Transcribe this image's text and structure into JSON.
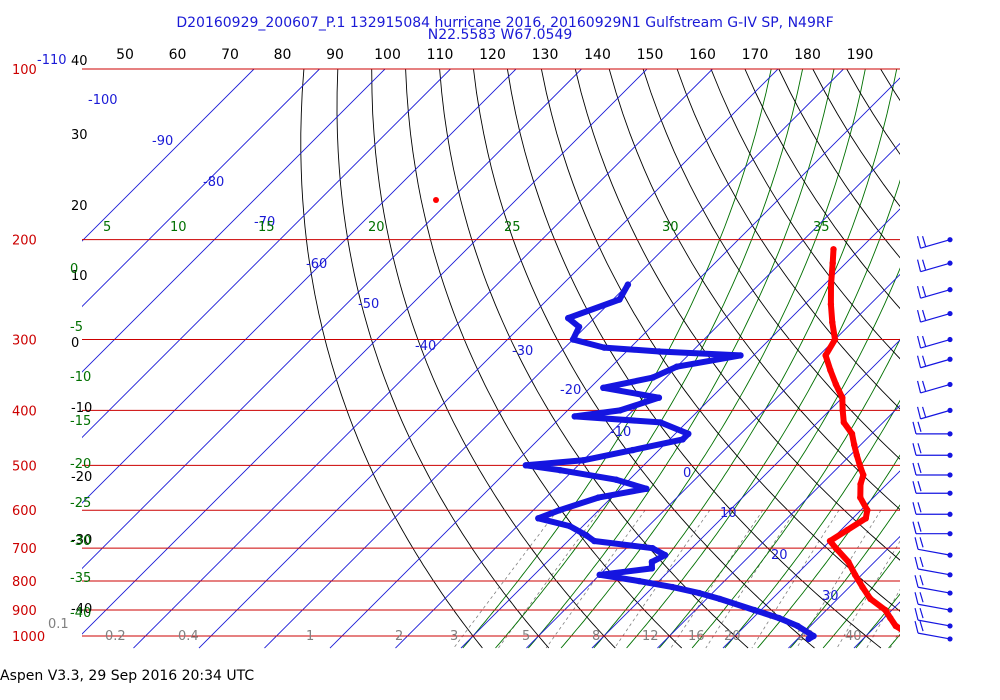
{
  "title": {
    "line1": "D20160929_200607_P.1 132915084 hurricane 2016, 20160929N1 Gulfstream G-IV SP, N49RF",
    "line2": "N22.5583 W67.0549"
  },
  "footer": "Aspen V3.3, 29 Sep 2016  20:34 UTC",
  "colors": {
    "isobar": "#cc0000",
    "isotherm": "#1a1ad6",
    "dry_adiabat": "#000000",
    "moist_adiabat": "#007000",
    "mixing_ratio": "#808080",
    "temperature": "#ff0000",
    "dewpoint": "#1515e0",
    "wind_barb": "#1515e0"
  },
  "chart_data": {
    "type": "skew-t",
    "pressure_axis": {
      "unit": "hPa",
      "scale": "log",
      "range": [
        1000,
        100
      ],
      "ticks": [
        "100",
        "200",
        "300",
        "400",
        "500",
        "600",
        "700",
        "800",
        "900",
        "1000"
      ]
    },
    "pressure_axis_alt_labels": [
      "-110"
    ],
    "top_axis_ticks": [
      "50",
      "60",
      "70",
      "80",
      "90",
      "100",
      "110",
      "120",
      "130",
      "140",
      "150",
      "160",
      "170",
      "180",
      "190"
    ],
    "left_height_ticks": [
      "40",
      "30",
      "20",
      "10",
      "0",
      "-10",
      "-20",
      "-30",
      "-40"
    ],
    "isotherm_labels": [
      "-100",
      "-90",
      "-80",
      "-70",
      "-60",
      "-50",
      "-40",
      "-30",
      "-20",
      "-10",
      "0",
      "10",
      "20",
      "30"
    ],
    "moist_adiabat_labels": [
      "5",
      "10",
      "15",
      "20",
      "25",
      "30",
      "35"
    ],
    "moist_left_labels": [
      "0",
      "-5",
      "-10",
      "-15",
      "-20",
      "-25",
      "-30",
      "-35",
      "-40"
    ],
    "mixing_ratio_labels": [
      "0.1",
      "0.2",
      "0.4",
      "1",
      "2",
      "3",
      "5",
      "8",
      "12",
      "16",
      "20",
      "28",
      "40"
    ],
    "series": [
      {
        "name": "Temperature",
        "points": [
          [
            208,
            -44
          ],
          [
            220,
            -42
          ],
          [
            240,
            -39
          ],
          [
            260,
            -36
          ],
          [
            280,
            -33
          ],
          [
            300,
            -30
          ],
          [
            320,
            -29
          ],
          [
            340,
            -26
          ],
          [
            360,
            -23
          ],
          [
            380,
            -20
          ],
          [
            400,
            -18
          ],
          [
            420,
            -16
          ],
          [
            440,
            -13
          ],
          [
            460,
            -11
          ],
          [
            480,
            -9
          ],
          [
            500,
            -7
          ],
          [
            520,
            -5
          ],
          [
            540,
            -4
          ],
          [
            570,
            -2
          ],
          [
            600,
            1
          ],
          [
            620,
            2
          ],
          [
            650,
            1
          ],
          [
            680,
            0
          ],
          [
            700,
            2
          ],
          [
            740,
            6
          ],
          [
            780,
            9
          ],
          [
            820,
            12
          ],
          [
            860,
            15
          ],
          [
            900,
            19
          ],
          [
            930,
            21
          ],
          [
            960,
            23
          ],
          [
            990,
            26
          ],
          [
            1012,
            28.8
          ]
        ]
      },
      {
        "name": "Dewpoint",
        "points": [
          [
            240,
            -70
          ],
          [
            255,
            -69
          ],
          [
            275,
            -74
          ],
          [
            285,
            -71
          ],
          [
            300,
            -70
          ],
          [
            310,
            -64
          ],
          [
            315,
            -55
          ],
          [
            320,
            -42
          ],
          [
            335,
            -50
          ],
          [
            350,
            -52
          ],
          [
            365,
            -58
          ],
          [
            380,
            -48
          ],
          [
            400,
            -52
          ],
          [
            410,
            -58
          ],
          [
            420,
            -44
          ],
          [
            440,
            -38
          ],
          [
            450,
            -38
          ],
          [
            470,
            -44
          ],
          [
            490,
            -50
          ],
          [
            500,
            -58
          ],
          [
            510,
            -52
          ],
          [
            530,
            -42
          ],
          [
            550,
            -36
          ],
          [
            570,
            -42
          ],
          [
            600,
            -46
          ],
          [
            620,
            -48
          ],
          [
            640,
            -42
          ],
          [
            665,
            -38
          ],
          [
            680,
            -36
          ],
          [
            700,
            -26
          ],
          [
            720,
            -23
          ],
          [
            740,
            -24
          ],
          [
            760,
            -23
          ],
          [
            780,
            -30
          ],
          [
            800,
            -23
          ],
          [
            820,
            -17
          ],
          [
            840,
            -12
          ],
          [
            860,
            -8
          ],
          [
            900,
            -1
          ],
          [
            930,
            4
          ],
          [
            960,
            8
          ],
          [
            1000,
            12
          ],
          [
            1012,
            11.7
          ]
        ]
      }
    ],
    "wind_profile_pressures": [
      200,
      220,
      245,
      270,
      300,
      325,
      360,
      400,
      440,
      480,
      520,
      560,
      610,
      660,
      720,
      780,
      840,
      900,
      960,
      1012
    ]
  }
}
